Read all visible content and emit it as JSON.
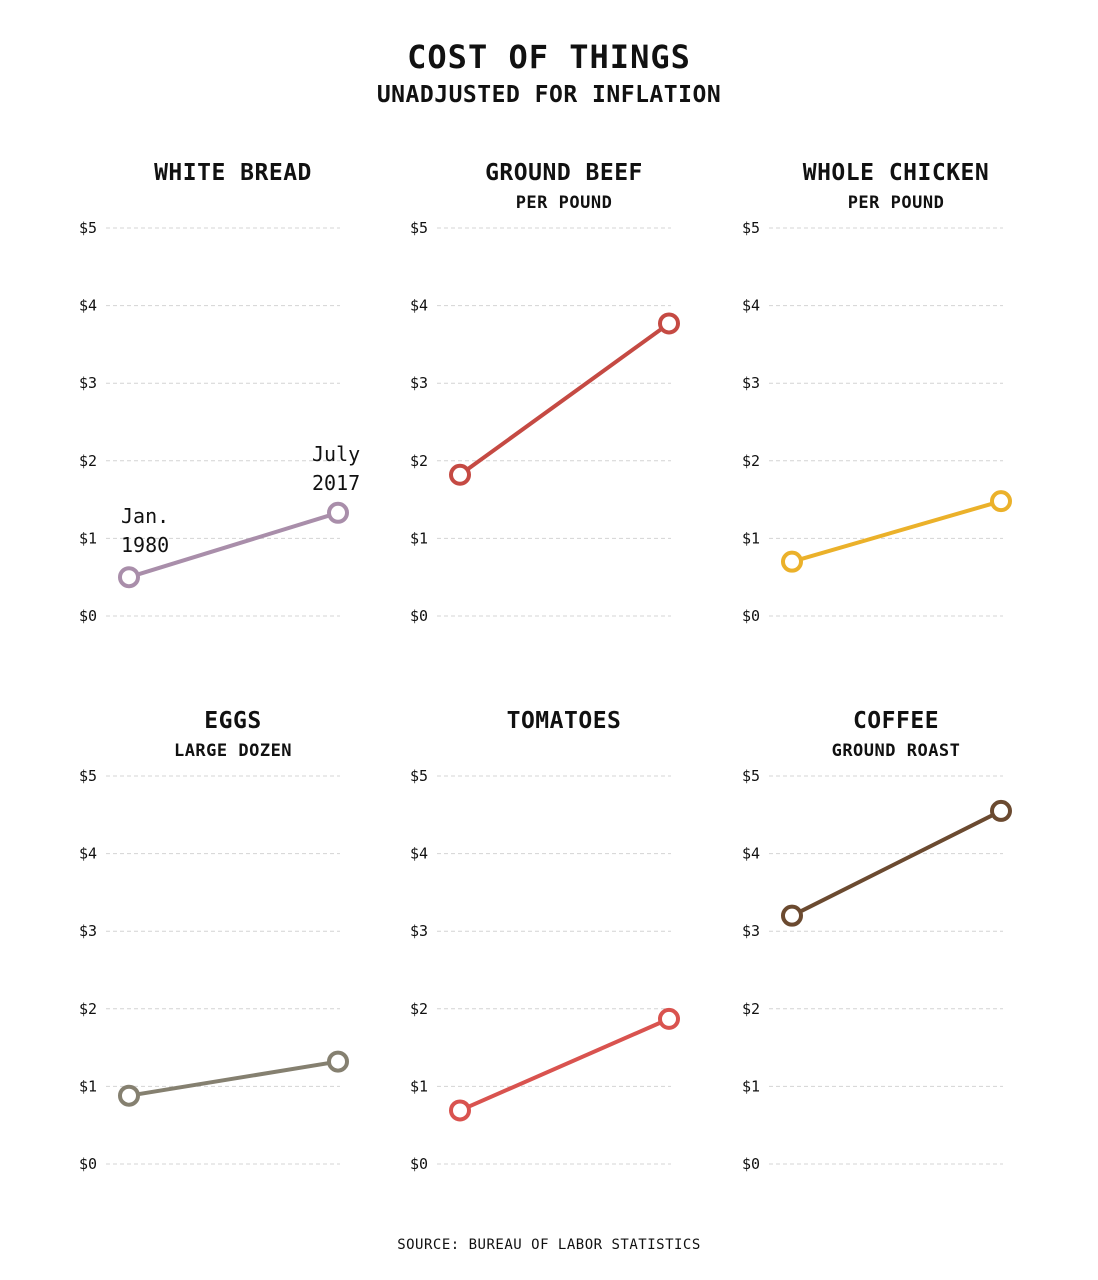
{
  "header": {
    "title": "COST OF THINGS",
    "subtitle": "UNADJUSTED FOR INFLATION"
  },
  "source": "SOURCE: BUREAU OF LABOR STATISTICS",
  "y_ticks": [
    "$0",
    "$1",
    "$2",
    "$3",
    "$4",
    "$5"
  ],
  "annotations": {
    "start_line1": "Jan.",
    "start_line2": "1980",
    "end_line1": "July",
    "end_line2": "2017"
  },
  "chart_data": [
    {
      "type": "line",
      "title": "WHITE BREAD",
      "subtitle": "",
      "x": [
        "Jan. 1980",
        "July 2017"
      ],
      "values": [
        0.5,
        1.33
      ],
      "ylim": [
        0,
        5
      ],
      "color": "#a98eaa",
      "grid": true
    },
    {
      "type": "line",
      "title": "GROUND BEEF",
      "subtitle": "PER POUND",
      "x": [
        "Jan. 1980",
        "July 2017"
      ],
      "values": [
        1.82,
        3.77
      ],
      "ylim": [
        0,
        5
      ],
      "color": "#c54a43",
      "grid": true
    },
    {
      "type": "line",
      "title": "WHOLE CHICKEN",
      "subtitle": "PER POUND",
      "x": [
        "Jan. 1980",
        "July 2017"
      ],
      "values": [
        0.7,
        1.48
      ],
      "ylim": [
        0,
        5
      ],
      "color": "#ebb12a",
      "grid": true
    },
    {
      "type": "line",
      "title": "EGGS",
      "subtitle": "LARGE DOZEN",
      "x": [
        "Jan. 1980",
        "July 2017"
      ],
      "values": [
        0.88,
        1.32
      ],
      "ylim": [
        0,
        5
      ],
      "color": "#858070",
      "grid": true
    },
    {
      "type": "line",
      "title": "TOMATOES",
      "subtitle": "",
      "x": [
        "Jan. 1980",
        "July 2017"
      ],
      "values": [
        0.69,
        1.87
      ],
      "ylim": [
        0,
        5
      ],
      "color": "#d9534f",
      "grid": true
    },
    {
      "type": "line",
      "title": "COFFEE",
      "subtitle": "GROUND ROAST",
      "x": [
        "Jan. 1980",
        "July 2017"
      ],
      "values": [
        3.2,
        4.55
      ],
      "ylim": [
        0,
        5
      ],
      "color": "#6b4a30",
      "grid": true
    }
  ]
}
